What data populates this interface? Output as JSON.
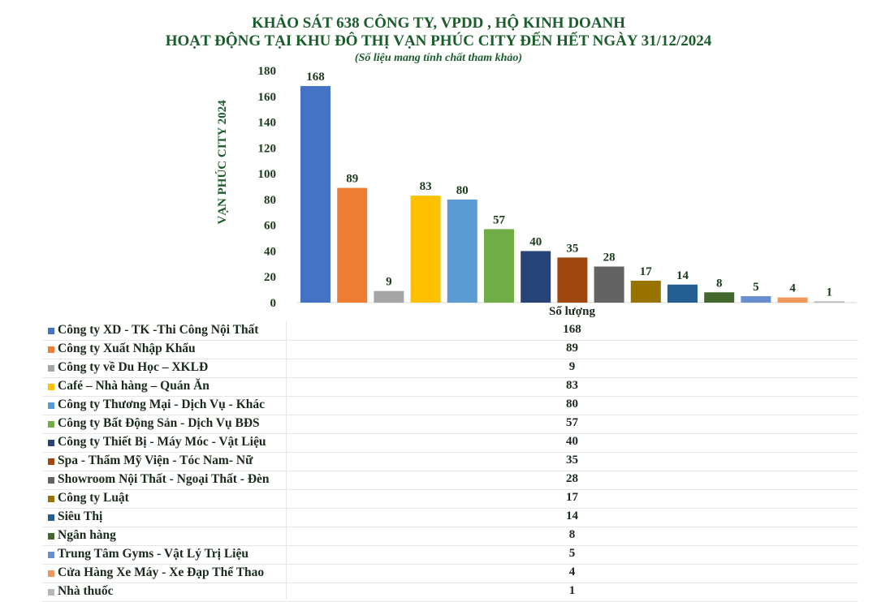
{
  "header": {
    "title_line1": "KHẢO SÁT 638 CÔNG TY, VPDD , HỘ KINH DOANH",
    "title_line2": "HOẠT ĐỘNG TẠI KHU ĐÔ THỊ VẠN PHÚC CITY ĐẾN HẾT NGÀY 31/12/2024",
    "subtitle": "(Số liệu mang tính chất tham khảo)"
  },
  "chart_data": {
    "type": "bar",
    "title": "KHẢO SÁT 638 CÔNG TY, VPDD , HỘ KINH DOANH HOẠT ĐỘNG TẠI KHU ĐÔ THỊ VẠN PHÚC CITY ĐẾN HẾT NGÀY 31/12/2024",
    "ylabel": "VẠN PHÚC CITY 2024",
    "xlabel": "Số lượng",
    "ylim": [
      0,
      180
    ],
    "yticks": [
      0,
      20,
      40,
      60,
      80,
      100,
      120,
      140,
      160,
      180
    ],
    "grid": false,
    "legend": "data-table-below",
    "categories": [
      "Công ty XD - TK -Thi Công Nội Thất",
      "Công ty Xuất Nhập Khẩu",
      "Công ty về Du Học  – XKLĐ",
      "Café – Nhà hàng – Quán Ăn",
      "Công ty Thương Mại - Dịch Vụ - Khác",
      "Công ty Bất Động Sản - Dịch Vụ BĐS",
      "Công ty Thiết Bị - Máy Móc - Vật Liệu",
      "Spa - Thẩm Mỹ Viện - Tóc Nam- Nữ",
      "Showroom Nội Thất - Ngoại Thất - Đèn",
      "Công ty  Luật",
      "Siêu Thị",
      "Ngân hàng",
      "Trung Tâm Gyms - Vật Lý Trị Liệu",
      "Cửa Hàng Xe Máy - Xe Đạp Thể Thao",
      "Nhà thuốc"
    ],
    "values": [
      168,
      89,
      9,
      83,
      80,
      57,
      40,
      35,
      28,
      17,
      14,
      8,
      5,
      4,
      1
    ],
    "colors": [
      "#4472c4",
      "#ed7d31",
      "#a5a5a5",
      "#ffc000",
      "#5b9bd5",
      "#70ad47",
      "#264478",
      "#9e480e",
      "#636363",
      "#997300",
      "#255e91",
      "#43682b",
      "#698ed0",
      "#f1975a",
      "#b7b7b7"
    ]
  }
}
